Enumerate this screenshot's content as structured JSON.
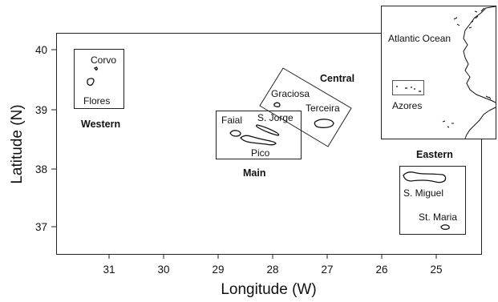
{
  "axes": {
    "x_title": "Longitude (W)",
    "y_title": "Latitude (N)",
    "x_ticks": [
      {
        "value": 31,
        "label": "31"
      },
      {
        "value": 30,
        "label": "30"
      },
      {
        "value": 29,
        "label": "29"
      },
      {
        "value": 28,
        "label": "28"
      },
      {
        "value": 27,
        "label": "27"
      },
      {
        "value": 26,
        "label": "26"
      },
      {
        "value": 25,
        "label": "25"
      }
    ],
    "y_ticks": [
      {
        "value": 40,
        "label": "40"
      },
      {
        "value": 39,
        "label": "39"
      },
      {
        "value": 38,
        "label": "38"
      },
      {
        "value": 37,
        "label": "37"
      }
    ]
  },
  "groups": {
    "western": "Western",
    "central": "Central",
    "main": "Main",
    "eastern": "Eastern"
  },
  "islands": {
    "corvo": "Corvo",
    "flores": "Flores",
    "graciosa": "Graciosa",
    "terceira": "Terceira",
    "faial": "Faial",
    "sao_jorge": "S. Jorge",
    "pico": "Pico",
    "sao_miguel": "S. Miguel",
    "santa_maria": "St. Maria"
  },
  "inset": {
    "ocean_label": "Atlantic Ocean",
    "archipelago_label": "Azores"
  }
}
